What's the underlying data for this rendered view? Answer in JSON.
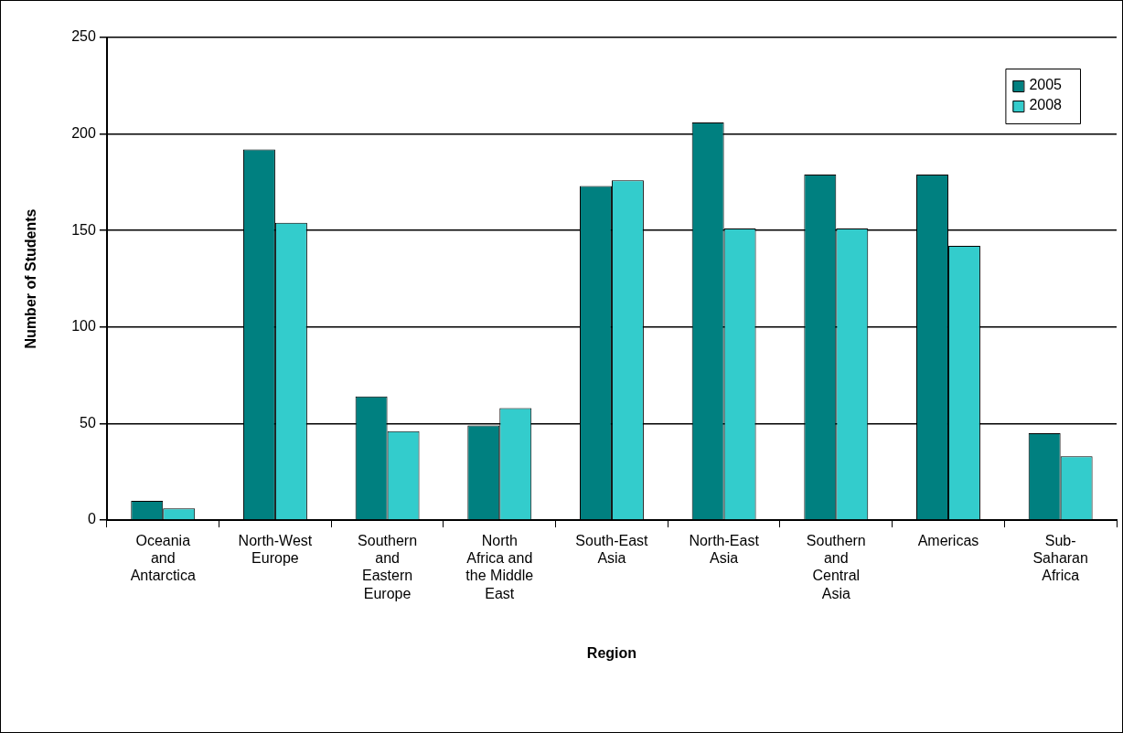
{
  "chart_data": {
    "type": "bar",
    "xlabel": "Region",
    "ylabel": "Number of Students",
    "categories": [
      "Oceania and Antarctica",
      "North-West Europe",
      "Southern and Eastern Europe",
      "North Africa and the Middle East",
      "South-East Asia",
      "North-East Asia",
      "Southern and Central Asia",
      "Americas",
      "Sub-Saharan Africa"
    ],
    "series": [
      {
        "name": "2005",
        "color": "#008080",
        "values": [
          10,
          192,
          64,
          49,
          173,
          206,
          179,
          179,
          45
        ]
      },
      {
        "name": "2008",
        "color": "#33cccc",
        "values": [
          6,
          154,
          46,
          58,
          176,
          151,
          151,
          142,
          33
        ]
      }
    ],
    "ylim": [
      0,
      250
    ],
    "yticks": [
      0,
      50,
      100,
      150,
      200,
      250
    ],
    "grid": "y",
    "legend": "top right"
  }
}
